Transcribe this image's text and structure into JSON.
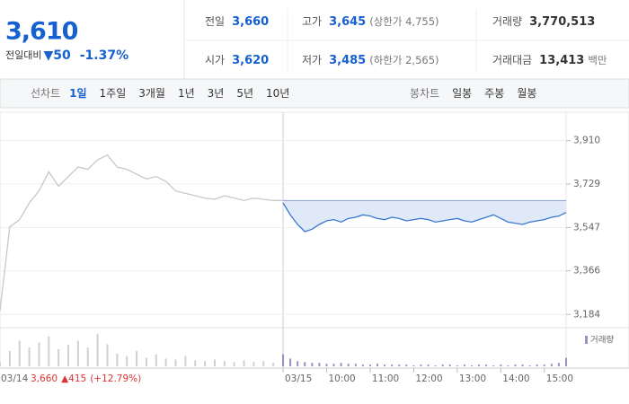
{
  "header": {
    "price": "3,610",
    "change_label": "전일대비",
    "change": "▼50",
    "change_pct": "-1.37%"
  },
  "stats": [
    {
      "label": "전일",
      "value": "3,660"
    },
    {
      "label": "고가",
      "value": "3,645",
      "note": "(상한가 4,755)"
    },
    {
      "label": "거래량",
      "value": "3,770,513"
    },
    {
      "label": "시가",
      "value": "3,620"
    },
    {
      "label": "저가",
      "value": "3,485",
      "note": "(하한가 2,565)"
    },
    {
      "label": "거래대금",
      "value": "13,413",
      "note": "백만"
    }
  ],
  "tabs": {
    "line_label": "선차트",
    "periods": [
      "1일",
      "1주일",
      "3개월",
      "1년",
      "3년",
      "5년",
      "10년"
    ],
    "candle_label": "봉차트",
    "candles": [
      "일봉",
      "주봉",
      "월봉"
    ]
  },
  "chart_data": {
    "type": "line",
    "ylim": [
      3140,
      4010
    ],
    "yticks": [
      {
        "value": 3910,
        "label": "3,910"
      },
      {
        "value": 3729,
        "label": "3,729"
      },
      {
        "value": 3547,
        "label": "3,547"
      },
      {
        "value": 3366,
        "label": "3,366"
      },
      {
        "value": 3184,
        "label": "3,184"
      }
    ],
    "xlim": [
      9,
      15.5
    ],
    "xticks": [
      {
        "value": 9,
        "label": "03/15"
      },
      {
        "value": 10,
        "label": "10:00"
      },
      {
        "value": 11,
        "label": "11:00"
      },
      {
        "value": 12,
        "label": "12:00"
      },
      {
        "value": 13,
        "label": "13:00"
      },
      {
        "value": 14,
        "label": "14:00"
      },
      {
        "value": 15,
        "label": "15:00"
      }
    ],
    "reference": 3660,
    "series": [
      {
        "color": "#c8c8c8",
        "values": [
          3200,
          3550,
          3580,
          3650,
          3700,
          3780,
          3720,
          3760,
          3800,
          3790,
          3830,
          3850,
          3800,
          3790,
          3770,
          3750,
          3760,
          3740,
          3700,
          3690,
          3680,
          3670,
          3665,
          3680,
          3670,
          3660,
          3670,
          3665,
          3660,
          3660
        ]
      },
      {
        "color": "#3a78d0",
        "fill": "#dfe9f8",
        "values": [
          3650,
          3600,
          3560,
          3530,
          3540,
          3560,
          3575,
          3580,
          3570,
          3585,
          3590,
          3600,
          3595,
          3585,
          3580,
          3590,
          3585,
          3575,
          3580,
          3585,
          3580,
          3570,
          3575,
          3580,
          3585,
          3575,
          3570,
          3580,
          3590,
          3600,
          3585,
          3570,
          3565,
          3560,
          3570,
          3575,
          3580,
          3590,
          3595,
          3610
        ]
      }
    ],
    "volume": {
      "name": "거래량",
      "color": "#9b8fc7",
      "prev_color": "#d0d0d0",
      "prev": [
        5,
        18,
        30,
        22,
        28,
        35,
        20,
        25,
        30,
        22,
        38,
        26,
        15,
        12,
        18,
        10,
        14,
        9,
        8,
        12,
        7,
        6,
        8,
        6,
        5,
        7,
        5,
        6,
        4,
        8
      ],
      "today": [
        14,
        9,
        6,
        5,
        4,
        4,
        3,
        3,
        4,
        3,
        3,
        2,
        2,
        3,
        2,
        2,
        2,
        2,
        1,
        2,
        2,
        1,
        2,
        2,
        1,
        2,
        1,
        2,
        2,
        1,
        2,
        1,
        2,
        2,
        1,
        2,
        2,
        3,
        4,
        10
      ]
    },
    "prev_date": "03/14",
    "prev_close": "3,660",
    "prev_change": "▲415",
    "prev_change_pct": "(+12.79%)"
  }
}
